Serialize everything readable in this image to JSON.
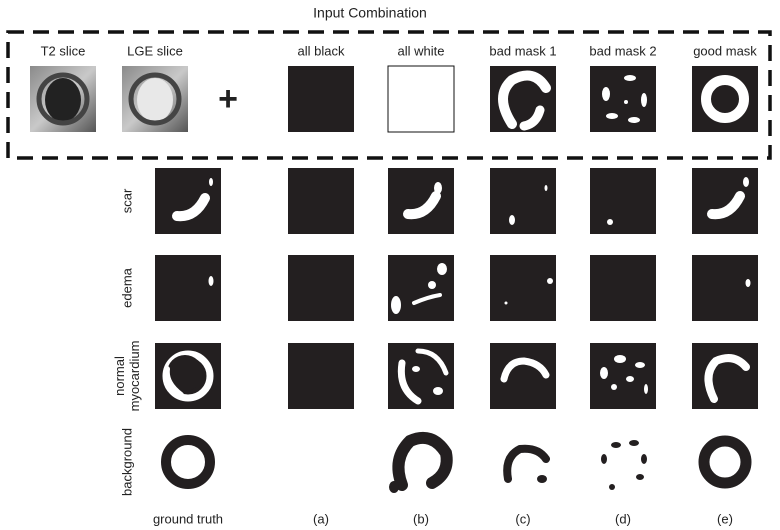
{
  "title": "Input Combination",
  "inputs": [
    "T2 slice",
    "LGE slice",
    "all black",
    "all white",
    "bad mask 1",
    "bad mask 2",
    "good mask"
  ],
  "plus": "+",
  "rows": [
    [
      "scar"
    ],
    [
      "edema"
    ],
    [
      "normal",
      "myocardium"
    ],
    [
      "background"
    ]
  ],
  "columns": [
    "ground truth",
    "(a)",
    "(b)",
    "(c)",
    "(d)",
    "(e)"
  ]
}
